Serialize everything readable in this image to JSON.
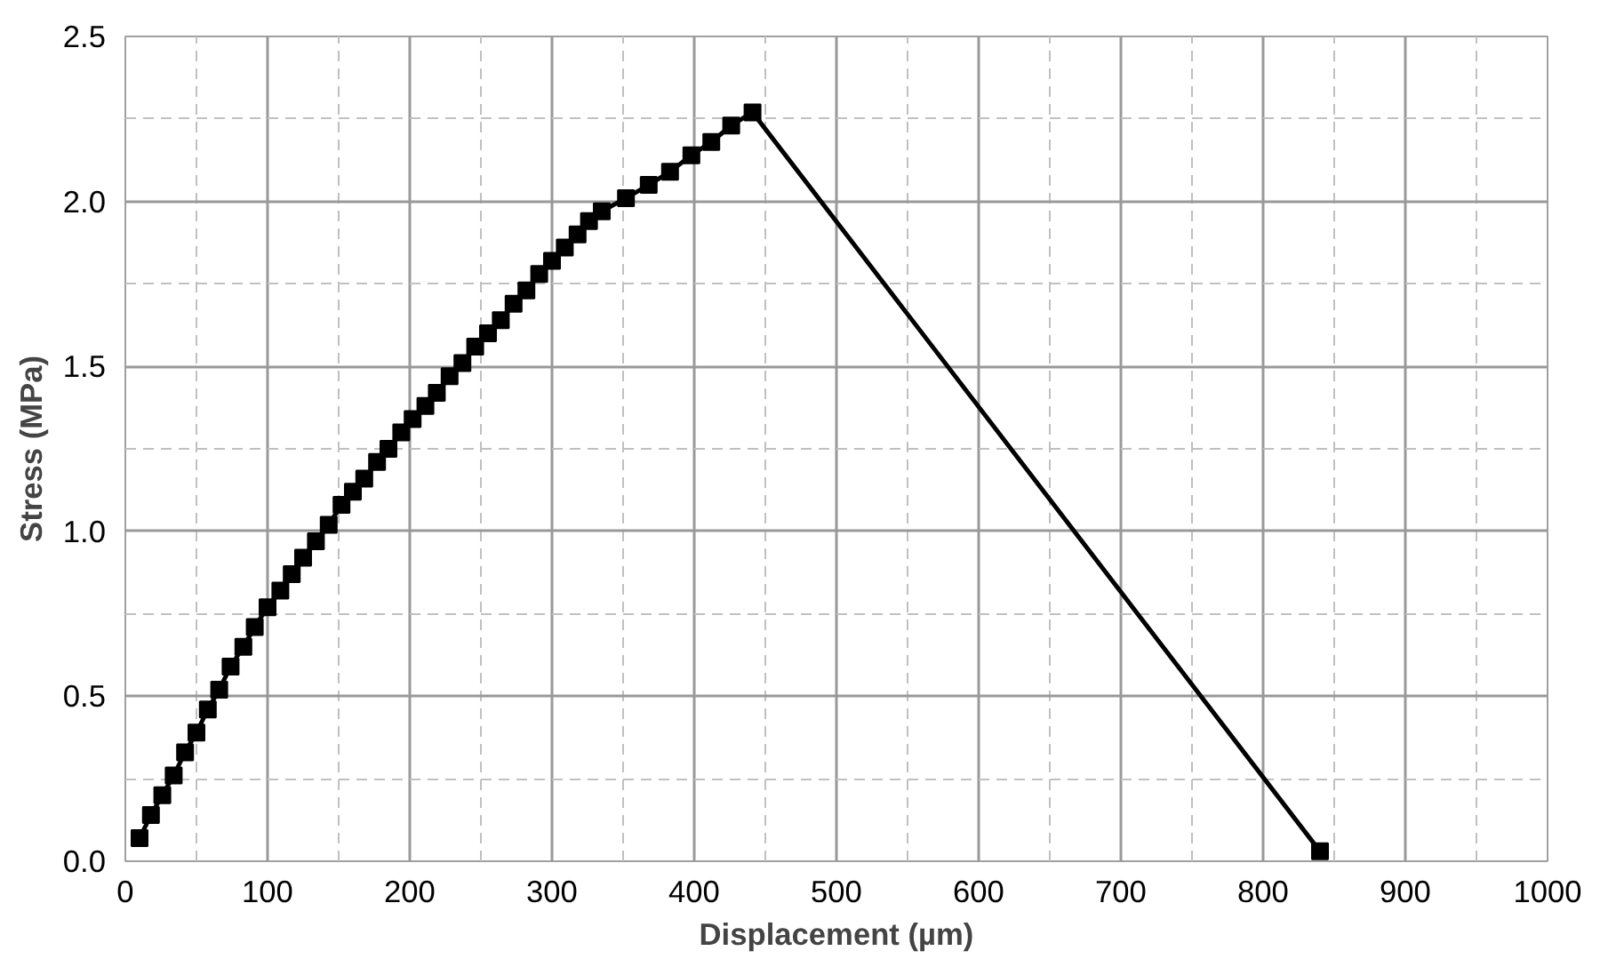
{
  "chart_data": {
    "type": "line",
    "xlabel": "Displacement (µm)",
    "ylabel": "Stress (MPa)",
    "x": [
      10,
      18,
      26,
      34,
      42,
      50,
      58,
      66,
      74,
      83,
      91,
      100,
      109,
      117,
      125,
      134,
      143,
      152,
      160,
      168,
      177,
      185,
      194,
      202,
      211,
      219,
      228,
      237,
      246,
      255,
      264,
      273,
      282,
      291,
      300,
      309,
      318,
      326,
      335,
      352,
      368,
      383,
      398,
      412,
      426,
      441,
      840
    ],
    "series": [
      {
        "color": "#000000",
        "values": [
          0.07,
          0.14,
          0.2,
          0.26,
          0.33,
          0.39,
          0.46,
          0.52,
          0.59,
          0.65,
          0.71,
          0.77,
          0.82,
          0.87,
          0.92,
          0.97,
          1.02,
          1.08,
          1.12,
          1.16,
          1.21,
          1.25,
          1.3,
          1.34,
          1.38,
          1.42,
          1.47,
          1.51,
          1.56,
          1.6,
          1.64,
          1.69,
          1.73,
          1.78,
          1.82,
          1.86,
          1.9,
          1.94,
          1.97,
          2.01,
          2.05,
          2.09,
          2.14,
          2.18,
          2.23,
          2.27,
          0.03
        ]
      }
    ],
    "xlim": [
      0,
      1000
    ],
    "ylim": [
      0,
      2.5
    ],
    "xticks": [
      0,
      100,
      200,
      300,
      400,
      500,
      600,
      700,
      800,
      900,
      1000
    ],
    "yticks": [
      {
        "value": 0,
        "label": "0.0"
      },
      {
        "value": 0.5,
        "label": "0.5"
      },
      {
        "value": 1,
        "label": "1.0"
      },
      {
        "value": 1.5,
        "label": "1.5"
      },
      {
        "value": 2,
        "label": "2.0"
      },
      {
        "value": 2.5,
        "label": "2.5"
      }
    ],
    "grid": true,
    "marker": "square",
    "line_style": "solid"
  }
}
